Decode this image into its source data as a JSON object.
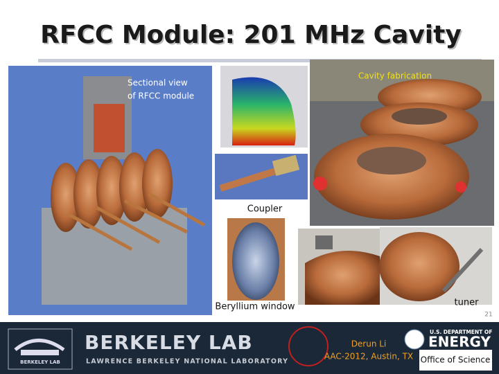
{
  "slide": {
    "title": "RFCC Module: 201 MHz Cavity",
    "labels": {
      "sectional_view": [
        "Sectional view",
        "of RFCC module"
      ],
      "cavity_fabrication": "Cavity fabrication",
      "coupler": "Coupler",
      "beryllium_window": "Beryllium window",
      "tuner": "tuner"
    },
    "page_number": "21"
  },
  "footer": {
    "lab_logo_small": "BERKELEY LAB",
    "lab_name": "BERKELEY LAB",
    "lab_full_name": "LAWRENCE BERKELEY NATIONAL LABORATORY",
    "author": "Derun Li",
    "venue": "AAC-2012, Austin, TX",
    "doe_line": "U.S. DEPARTMENT OF",
    "doe_name": "ENERGY",
    "doe_office": "Office of Science"
  }
}
